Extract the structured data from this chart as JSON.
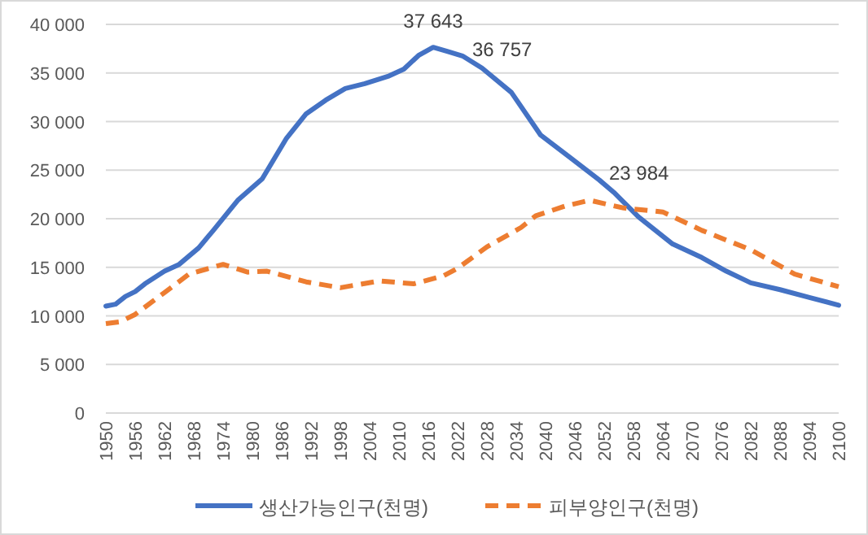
{
  "chart_data": {
    "type": "line",
    "xlim": [
      1950,
      2100
    ],
    "xticks": [
      1950,
      1956,
      1962,
      1968,
      1974,
      1980,
      1986,
      1992,
      1998,
      2004,
      2010,
      2016,
      2022,
      2028,
      2034,
      2040,
      2046,
      2052,
      2058,
      2064,
      2070,
      2076,
      2082,
      2088,
      2094,
      2100
    ],
    "ylim": [
      0,
      40000
    ],
    "yticks": [
      0,
      {
        "value": 5000,
        "label": "5 000"
      },
      {
        "value": 10000,
        "label": "10 000"
      },
      {
        "value": 15000,
        "label": "15 000"
      },
      {
        "value": 20000,
        "label": "20 000"
      },
      {
        "value": 25000,
        "label": "25 000"
      },
      {
        "value": 30000,
        "label": "30 000"
      },
      {
        "value": 35000,
        "label": "35 000"
      },
      {
        "value": 40000,
        "label": "40 000"
      }
    ],
    "grid": "y",
    "legend": "bottom",
    "series": [
      {
        "name": "생산가능인구(천명)",
        "color": "#4472c4",
        "line_style": "solid",
        "x": [
          1950,
          1952,
          1954,
          1956,
          1958,
          1962,
          1965,
          1969,
          1972,
          1977,
          1982,
          1987,
          1991,
          1995,
          1999,
          2003,
          2008,
          2011,
          2014,
          2017,
          2020,
          2023,
          2027,
          2033,
          2039,
          2045,
          2051,
          2054,
          2059,
          2066,
          2072,
          2077,
          2082,
          2088,
          2094,
          2100
        ],
        "values": [
          11000,
          11200,
          12000,
          12500,
          13300,
          14600,
          15300,
          17000,
          18800,
          21900,
          24100,
          28300,
          30800,
          32200,
          33400,
          33900,
          34700,
          35400,
          36800,
          37643,
          37200,
          36757,
          35500,
          33000,
          28600,
          26300,
          23984,
          22700,
          20200,
          17400,
          16000,
          14600,
          13400,
          12700,
          11900,
          11100
        ]
      },
      {
        "name": "피부양인구(천명)",
        "color": "#ed7d31",
        "line_style": "dashed",
        "x": [
          1950,
          1953,
          1956,
          1962,
          1967,
          1974,
          1979,
          1983,
          1991,
          1998,
          2006,
          2013,
          2019,
          2022,
          2028,
          2035,
          2038,
          2044,
          2049,
          2056,
          2064,
          2072,
          2082,
          2091,
          2100
        ],
        "values": [
          9200,
          9400,
          10150,
          12400,
          14300,
          15300,
          14500,
          14600,
          13500,
          12900,
          13600,
          13300,
          14100,
          14900,
          17100,
          19100,
          20300,
          21300,
          21900,
          21100,
          20700,
          18800,
          16800,
          14300,
          13000
        ]
      }
    ],
    "annotations": [
      {
        "text": "37 643",
        "x": 2017,
        "y": 37643
      },
      {
        "text": "36 757",
        "x": 2023,
        "y": 36757
      },
      {
        "text": "23 984",
        "x": 2051,
        "y": 23984
      }
    ]
  }
}
